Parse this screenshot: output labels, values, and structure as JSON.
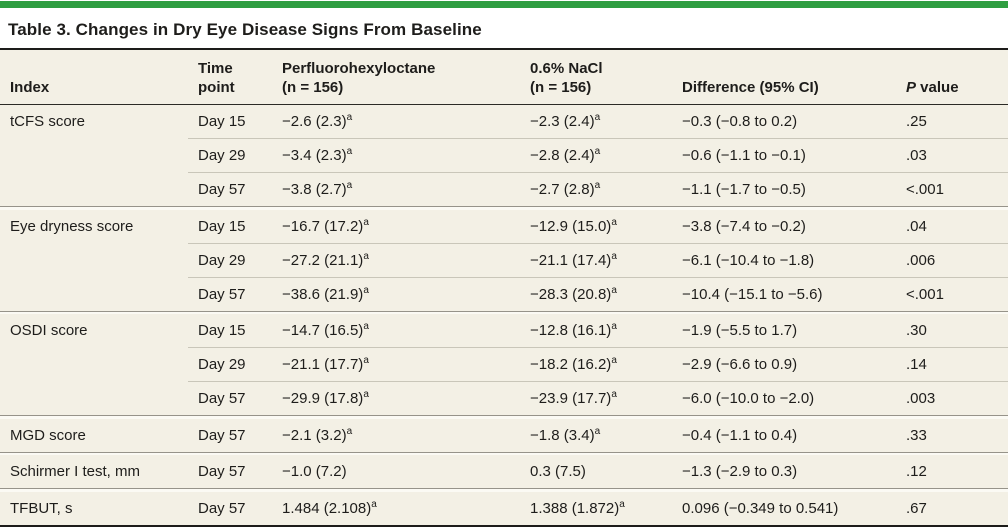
{
  "title": "Table 3. Changes in Dry Eye Disease Signs From Baseline",
  "columns": {
    "index": "Index",
    "time": "Time\npoint",
    "pfh": "Perfluorohexyloctane\n(n = 156)",
    "nacl": "0.6% NaCl\n(n = 156)",
    "diff": "Difference (95% CI)",
    "p": "P value"
  },
  "colors": {
    "accent_green": "#2f9e41",
    "row_cream": "#f3f0e5",
    "text": "#1e1d1b",
    "rule_dark": "#1d1c1a",
    "rule_group": "#96938a",
    "rule_sub": "#c9c6b9"
  },
  "footnote_marker": "a",
  "groups": [
    {
      "index": "tCFS score",
      "rows": [
        {
          "time": "Day 15",
          "pfh": "−2.6 (2.3)^a",
          "nacl": "−2.3 (2.4)^a",
          "diff": "−0.3 (−0.8 to 0.2)",
          "p": ".25"
        },
        {
          "time": "Day 29",
          "pfh": "−3.4 (2.3)^a",
          "nacl": "−2.8 (2.4)^a",
          "diff": "−0.6 (−1.1 to −0.1)",
          "p": ".03"
        },
        {
          "time": "Day 57",
          "pfh": "−3.8 (2.7)^a",
          "nacl": "−2.7 (2.8)^a",
          "diff": "−1.1 (−1.7 to −0.5)",
          "p": "<.001"
        }
      ]
    },
    {
      "index": "Eye dryness score",
      "rows": [
        {
          "time": "Day 15",
          "pfh": "−16.7 (17.2)^a",
          "nacl": "−12.9 (15.0)^a",
          "diff": "−3.8 (−7.4 to −0.2)",
          "p": ".04"
        },
        {
          "time": "Day 29",
          "pfh": "−27.2 (21.1)^a",
          "nacl": "−21.1 (17.4)^a",
          "diff": "−6.1 (−10.4 to −1.8)",
          "p": ".006"
        },
        {
          "time": "Day 57",
          "pfh": "−38.6 (21.9)^a",
          "nacl": "−28.3 (20.8)^a",
          "diff": "−10.4 (−15.1 to −5.6)",
          "p": "<.001"
        }
      ]
    },
    {
      "index": "OSDI score",
      "rows": [
        {
          "time": "Day 15",
          "pfh": "−14.7 (16.5)^a",
          "nacl": "−12.8 (16.1)^a",
          "diff": "−1.9 (−5.5 to 1.7)",
          "p": ".30"
        },
        {
          "time": "Day 29",
          "pfh": "−21.1 (17.7)^a",
          "nacl": "−18.2 (16.2)^a",
          "diff": "−2.9 (−6.6 to 0.9)",
          "p": ".14"
        },
        {
          "time": "Day 57",
          "pfh": "−29.9 (17.8)^a",
          "nacl": "−23.9 (17.7)^a",
          "diff": "−6.0 (−10.0 to −2.0)",
          "p": ".003"
        }
      ]
    },
    {
      "index": "MGD score",
      "rows": [
        {
          "time": "Day 57",
          "pfh": "−2.1 (3.2)^a",
          "nacl": "−1.8 (3.4)^a",
          "diff": "−0.4 (−1.1 to 0.4)",
          "p": ".33"
        }
      ]
    },
    {
      "index": "Schirmer I test, mm",
      "rows": [
        {
          "time": "Day 57",
          "pfh": "−1.0 (7.2)",
          "nacl": "0.3 (7.5)",
          "diff": "−1.3 (−2.9 to 0.3)",
          "p": ".12"
        }
      ]
    },
    {
      "index": "TFBUT, s",
      "rows": [
        {
          "time": "Day 57",
          "pfh": "1.484 (2.108)^a",
          "nacl": "1.388 (1.872)^a",
          "diff": "0.096 (−0.349 to 0.541)",
          "p": ".67"
        }
      ]
    }
  ]
}
